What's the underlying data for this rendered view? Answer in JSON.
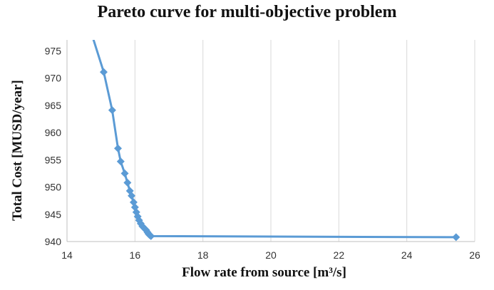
{
  "chart_data": {
    "type": "line",
    "title": "Pareto curve for multi-objective problem",
    "xlabel": "Flow rate from source [m³/s]",
    "ylabel": "Total Cost [MUSD/year]",
    "xlim": [
      14,
      26
    ],
    "ylim": [
      940,
      977
    ],
    "x_ticks": [
      14,
      16,
      18,
      20,
      22,
      24,
      26
    ],
    "y_ticks": [
      940,
      945,
      950,
      955,
      960,
      965,
      970,
      975
    ],
    "grid": "vertical",
    "color": "#5b9bd5",
    "marker": "diamond",
    "series": [
      {
        "points": [
          [
            14.75,
            977.6
          ],
          [
            15.08,
            971.1
          ],
          [
            15.33,
            964.1
          ],
          [
            15.5,
            957.1
          ],
          [
            15.58,
            954.7
          ],
          [
            15.7,
            952.5
          ],
          [
            15.78,
            950.8
          ],
          [
            15.85,
            949.3
          ],
          [
            15.9,
            948.4
          ],
          [
            15.96,
            947.2
          ],
          [
            16.0,
            946.3
          ],
          [
            16.04,
            945.4
          ],
          [
            16.08,
            944.6
          ],
          [
            16.12,
            943.9
          ],
          [
            16.17,
            943.3
          ],
          [
            16.22,
            942.8
          ],
          [
            16.28,
            942.4
          ],
          [
            16.33,
            942.1
          ],
          [
            16.37,
            941.7
          ],
          [
            16.4,
            941.4
          ],
          [
            16.43,
            941.2
          ],
          [
            16.47,
            941.0
          ],
          [
            25.45,
            940.8
          ]
        ]
      }
    ]
  }
}
